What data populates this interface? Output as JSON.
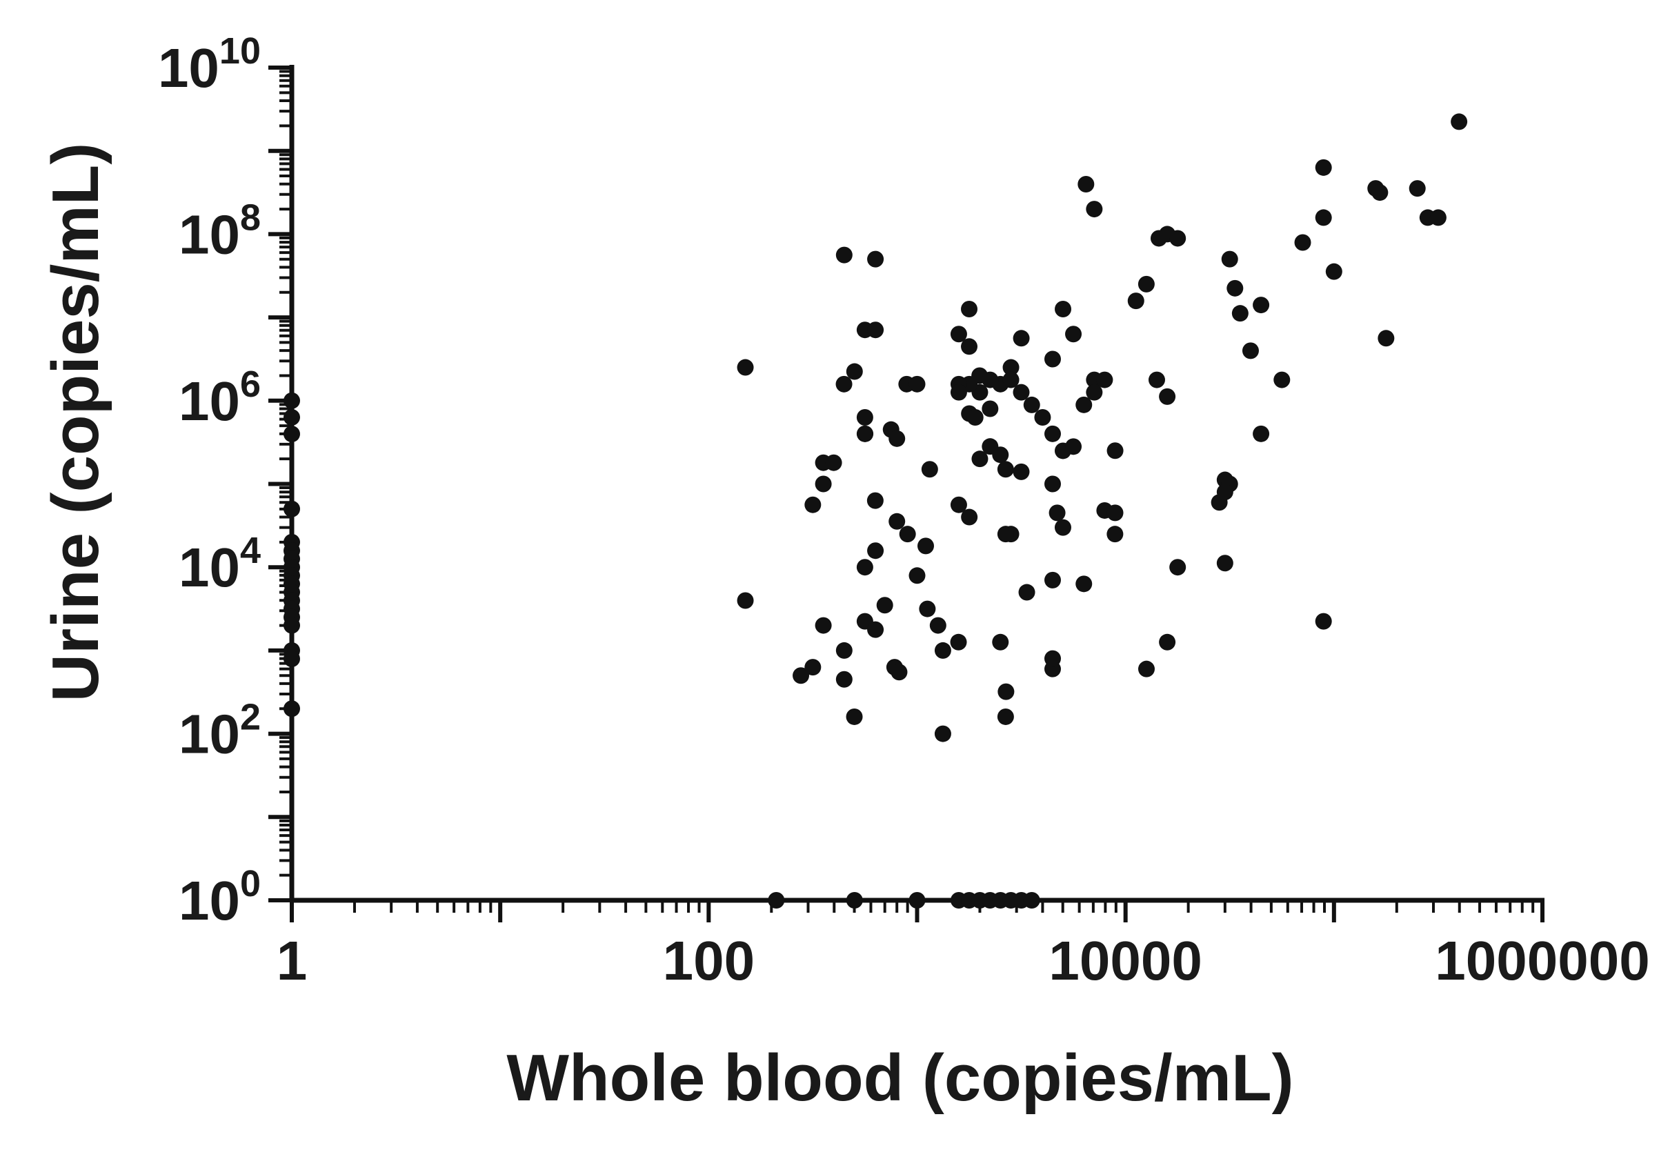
{
  "chart_data": {
    "type": "scatter",
    "title": "",
    "xlabel": "Whole blood (copies/mL)",
    "ylabel": "Urine (copies/mL)",
    "x_scale": "log",
    "y_scale": "log",
    "xlim": [
      1,
      1000000
    ],
    "ylim": [
      1,
      10000000000
    ],
    "grid": false,
    "legend": "none",
    "marker_color": "#111111",
    "x_ticks": [
      {
        "value": 1,
        "label": "1"
      },
      {
        "value": 100,
        "label": "100"
      },
      {
        "value": 10000,
        "label": "10000"
      },
      {
        "value": 1000000,
        "label": "1000000"
      }
    ],
    "y_ticks": [
      {
        "value": 1,
        "base": "10",
        "exp": "0"
      },
      {
        "value": 100,
        "base": "10",
        "exp": "2"
      },
      {
        "value": 10000,
        "base": "10",
        "exp": "4"
      },
      {
        "value": 1000000,
        "base": "10",
        "exp": "6"
      },
      {
        "value": 100000000,
        "base": "10",
        "exp": "8"
      },
      {
        "value": 10000000000,
        "base": "10",
        "exp": "10"
      }
    ],
    "series": [
      {
        "points": [
          [
            1,
            1000000
          ],
          [
            1,
            631000
          ],
          [
            1,
            398000
          ],
          [
            1,
            50100
          ],
          [
            1,
            20000
          ],
          [
            1,
            15800
          ],
          [
            1,
            12600
          ],
          [
            1,
            10000
          ],
          [
            1,
            7940
          ],
          [
            1,
            6310
          ],
          [
            1,
            5010
          ],
          [
            1,
            3980
          ],
          [
            1,
            3160
          ],
          [
            1,
            2510
          ],
          [
            1,
            2000
          ],
          [
            1,
            1000
          ],
          [
            1,
            794
          ],
          [
            1,
            200
          ],
          [
            150,
            2510000
          ],
          [
            150,
            3980
          ],
          [
            211,
            1
          ],
          [
            501,
            1
          ],
          [
            1000,
            1
          ],
          [
            1585,
            1
          ],
          [
            1778,
            1
          ],
          [
            2000,
            1
          ],
          [
            2239,
            1
          ],
          [
            2512,
            1
          ],
          [
            2818,
            1
          ],
          [
            3162,
            1
          ],
          [
            3548,
            1
          ],
          [
            6460,
            398000000
          ],
          [
            7080,
            200000000
          ],
          [
            14450,
            89100000
          ],
          [
            15850,
            100000000
          ],
          [
            17780,
            89100000
          ],
          [
            70800,
            79400000
          ],
          [
            89100,
            631000000
          ],
          [
            89100,
            158000000
          ],
          [
            100000,
            35500000
          ],
          [
            158500,
            354000000
          ],
          [
            166000,
            316000000
          ],
          [
            251200,
            354000000
          ],
          [
            281800,
            158000000
          ],
          [
            316200,
            158000000
          ],
          [
            398100,
            2240000000
          ],
          [
            177800,
            5620000
          ],
          [
            89100,
            2240
          ],
          [
            631,
            50100000
          ],
          [
            562,
            7080000
          ],
          [
            631,
            7080000
          ],
          [
            1585,
            6310000
          ],
          [
            1778,
            12600000
          ],
          [
            1778,
            4470000
          ],
          [
            3162,
            5620000
          ],
          [
            5012,
            12600000
          ],
          [
            5620,
            6310000
          ],
          [
            11220,
            15800000
          ],
          [
            12590,
            25100000
          ],
          [
            31620,
            50100000
          ],
          [
            33500,
            22400000
          ],
          [
            35480,
            11200000
          ],
          [
            44670,
            14100000
          ],
          [
            39810,
            3980000
          ],
          [
            56230,
            1780000
          ],
          [
            14125,
            1780000
          ],
          [
            15850,
            1120000
          ],
          [
            7080,
            1780000
          ],
          [
            7940,
            1780000
          ],
          [
            4470,
            3160000
          ],
          [
            2820,
            2510000
          ],
          [
            2510,
            1580000
          ],
          [
            2000,
            1260000
          ],
          [
            1780,
            1580000
          ],
          [
            1585,
            1580000
          ],
          [
            1995,
            2000000
          ],
          [
            2240,
            1780000
          ],
          [
            2820,
            1780000
          ],
          [
            446,
            1580000
          ],
          [
            891,
            1580000
          ],
          [
            501,
            2240000
          ],
          [
            1000,
            1580000
          ],
          [
            1780,
            700000
          ],
          [
            1900,
            630000
          ],
          [
            2240,
            800000
          ],
          [
            3160,
            1260000
          ],
          [
            3550,
            890000
          ],
          [
            562,
            630000
          ],
          [
            563,
            400000
          ],
          [
            1585,
            1260000
          ],
          [
            6310,
            891000
          ],
          [
            7080,
            1260000
          ],
          [
            4000,
            630000
          ],
          [
            4470,
            400000
          ],
          [
            5010,
            250000
          ],
          [
            5620,
            281000
          ],
          [
            8913,
            251000
          ],
          [
            44670,
            400000
          ],
          [
            355,
            180000
          ],
          [
            355,
            100000
          ],
          [
            398,
            180000
          ],
          [
            447,
            56200000
          ],
          [
            562,
            400000
          ],
          [
            750,
            450000
          ],
          [
            800,
            350000
          ],
          [
            1150,
            150000
          ],
          [
            2000,
            200000
          ],
          [
            2240,
            282000
          ],
          [
            2510,
            224000
          ],
          [
            2660,
            150000
          ],
          [
            3160,
            140000
          ],
          [
            4470,
            100000
          ],
          [
            4700,
            45000
          ],
          [
            5010,
            30000
          ],
          [
            7940,
            48000
          ],
          [
            8910,
            45000
          ],
          [
            8900,
            25000
          ],
          [
            30000,
            112000
          ],
          [
            31620,
            100000
          ],
          [
            28180,
            60000
          ],
          [
            30000,
            80000
          ],
          [
            1585,
            56200
          ],
          [
            1780,
            40000
          ],
          [
            2820,
            25000
          ],
          [
            316,
            56200
          ],
          [
            630,
            63100
          ],
          [
            800,
            35500
          ],
          [
            900,
            25000
          ],
          [
            1100,
            18000
          ],
          [
            2660,
            25000
          ],
          [
            3360,
            5000
          ],
          [
            4470,
            7000
          ],
          [
            6310,
            6310
          ],
          [
            30000,
            11200
          ],
          [
            17780,
            10000
          ],
          [
            562,
            10000
          ],
          [
            631,
            15800
          ],
          [
            1000,
            7940
          ],
          [
            1120,
            3160
          ],
          [
            1260,
            2000
          ],
          [
            1580,
            1260
          ],
          [
            2510,
            1260
          ],
          [
            1330,
            1000
          ],
          [
            4470,
            600
          ],
          [
            4470,
            800
          ],
          [
            12600,
            600
          ],
          [
            15850,
            1260
          ],
          [
            447,
            1000
          ],
          [
            355,
            2000
          ],
          [
            562,
            2240
          ],
          [
            631,
            1780
          ],
          [
            700,
            3500
          ],
          [
            780,
            630
          ],
          [
            820,
            550
          ],
          [
            277,
            500
          ],
          [
            316,
            630
          ],
          [
            447,
            450
          ],
          [
            500,
            160
          ],
          [
            1330,
            100
          ],
          [
            2660,
            160
          ],
          [
            2670,
            320
          ]
        ]
      }
    ]
  }
}
